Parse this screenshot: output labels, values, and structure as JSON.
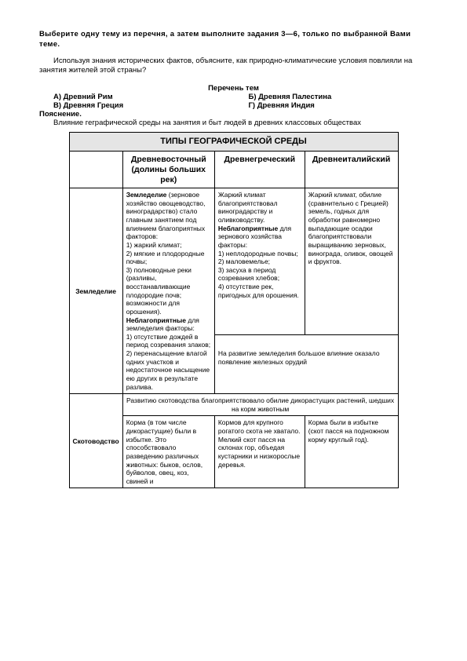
{
  "intro1": "Выберите одну тему из перечня, а затем выполните задания 3—6, только по выбранной Вами теме.",
  "intro2": "Используя знания исторических фактов, объясните, как природно-климатические условия повлияли на занятия жителей этой страны?",
  "listHeader": "Перечень тем",
  "optA": "А) Древний Рим",
  "optB": "Б) Древняя Палестина",
  "optV": "В) Древняя Греция",
  "optG": "Г) Древняя Индия",
  "poyas": "Пояснение.",
  "poyasText": "Влияние геграфической среды на занятия и быт людей в древних классовых обществах",
  "tableTitle": "ТИПЫ ГЕОГРАФИЧЕСКОЙ СРЕДЫ",
  "h1": "Древневосточный (долины больших рек)",
  "h2": "Древнегреческий",
  "h3": "Древнеиталийский",
  "row1label": "Земледелие",
  "r1c1": "Земледелие (зерновое хозяйство овощеводство, виноградарство) стало главным занятием под влиянием благоприятных факторов:\n1) жаркий климат;\n2) мягкие и плодородные почвы;\n3) полноводные реки (разливы, восстанавливающие плодородие почв; возможности для орошения).\nНеблагоприятные для земледелия факторы:\n1) отсутствие дождей в период созревания злаков;\n2) перенасыщение влагой одних участков и недостаточное насыщение ею других в результате разлива.",
  "r1c2": "Жаркий климат благоприятствовал виноградарству и оливководству. Неблагоприятные для зернового хозяйства факторы:\n1) неплодородные почвы;\n2) маловемелье;\n3) засуха в период созревания хлебов;\n4) отсутствие рек, пригодных для орошения.",
  "r1c3": "Жаркий климат, обилие (сравнительно с Грецией) земель, годных для обработки равномерно выпадающие осадки благоприятствовали выращиванию зерновых, винограда, оливок, овощей и фруктов.",
  "r1note": "На развитие земледелия большое влияние оказало появление железных орудий",
  "row2label": "Скотоводство",
  "r2span": "Развитию скотоводства благоприятствовало обилие дикорастущих растений, шедших на корм животным",
  "r2c1": "Корма (в том числе дикорастущие) были в избытке. Это способствовало разведению различных животных: быков, ослов, буйволов, овец, коз, свиней и",
  "r2c2": "Кормов для крупного рогатого скота не хватало. Мелкий скот пасся на склонах гор, объедая кустарники и низкорослые деревья.",
  "r2c3": "Корма были в избытке (скот пасся на подножном корму круглый год)."
}
